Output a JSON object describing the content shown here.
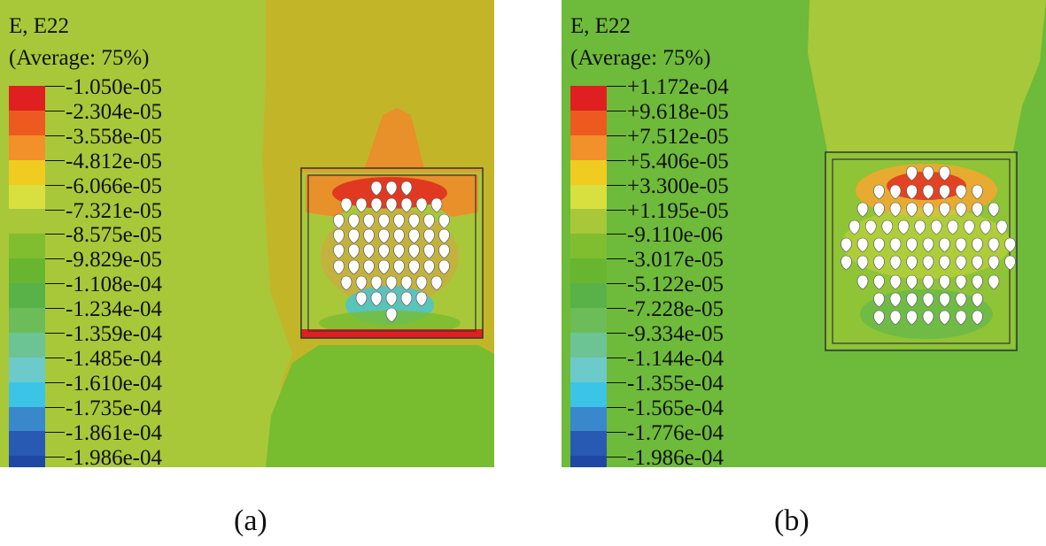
{
  "panels": [
    {
      "id": "a",
      "caption": "(a)",
      "title_line1": "E, E22",
      "title_line2": "(Average: 75%)",
      "legend_colors": [
        "#e02020",
        "#ec5a20",
        "#f2902a",
        "#f1cc20",
        "#d8e040",
        "#a8c83a",
        "#80be30",
        "#68b630",
        "#58b248",
        "#6cbc5a",
        "#6cc494",
        "#6ccaca",
        "#3cc4e6",
        "#3a88cc",
        "#285ab4",
        "#1e48a4"
      ],
      "legend_labels": [
        "-1.050e-05",
        "-2.304e-05",
        "-3.558e-05",
        "-4.812e-05",
        "-6.066e-05",
        "-7.321e-05",
        "-8.575e-05",
        "-9.829e-05",
        "-1.108e-04",
        "-1.234e-04",
        "-1.359e-04",
        "-1.485e-04",
        "-1.610e-04",
        "-1.735e-04",
        "-1.861e-04",
        "-1.986e-04"
      ]
    },
    {
      "id": "b",
      "caption": "(b)",
      "title_line1": "E, E22",
      "title_line2": "(Average: 75%)",
      "legend_colors": [
        "#e02020",
        "#ec5a20",
        "#f2902a",
        "#f1cc20",
        "#d8e040",
        "#a8c83a",
        "#80be30",
        "#68b630",
        "#58b248",
        "#6cbc5a",
        "#6cc494",
        "#6ccaca",
        "#3cc4e6",
        "#3a88cc",
        "#285ab4",
        "#1e48a4"
      ],
      "legend_labels": [
        "+1.172e-04",
        "+9.618e-05",
        "+7.512e-05",
        "+5.406e-05",
        "+3.300e-05",
        "+1.195e-05",
        "-9.110e-06",
        "-3.017e-05",
        "-5.122e-05",
        "-7.228e-05",
        "-9.334e-05",
        "-1.144e-04",
        "-1.355e-04",
        "-1.565e-04",
        "-1.776e-04",
        "-1.986e-04"
      ]
    }
  ]
}
